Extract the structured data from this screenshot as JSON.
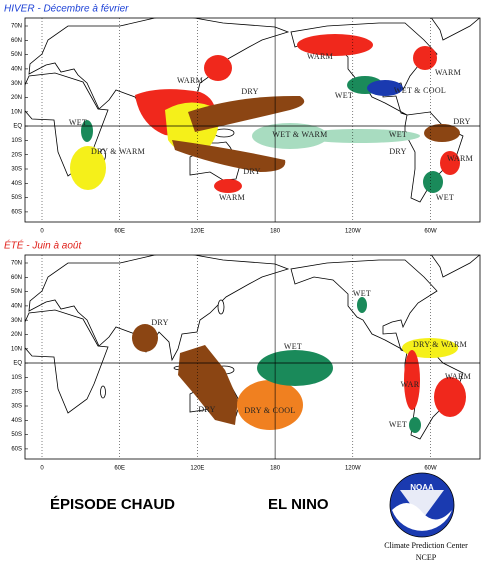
{
  "panels": [
    {
      "title": "HIVER - Décembre à février",
      "title_color": "#1a3fd6",
      "lat_labels": [
        "70N",
        "60N",
        "50N",
        "40N",
        "30N",
        "20N",
        "10N",
        "EQ",
        "10S",
        "20S",
        "30S",
        "40S",
        "50S",
        "60S"
      ],
      "lon_labels": [
        "0",
        "60E",
        "120E",
        "180",
        "120W",
        "60W"
      ],
      "regions": [
        "WARM",
        "DRY",
        "WET",
        "DRY & WARM",
        "DRY",
        "WARM",
        "WET & WARM",
        "WET",
        "DRY",
        "WARM",
        "WET",
        "WET & COOL",
        "WARM",
        "DRY",
        "WARM",
        "WET"
      ]
    },
    {
      "title": "ÉTÉ - Juin à août",
      "title_color": "#e0201a",
      "lat_labels": [
        "70N",
        "60N",
        "50N",
        "40N",
        "30N",
        "20N",
        "10N",
        "EQ",
        "10S",
        "20S",
        "30S",
        "40S",
        "50S",
        "60S"
      ],
      "lon_labels": [
        "0",
        "60E",
        "120E",
        "180",
        "120W",
        "60W"
      ],
      "regions": [
        "DRY",
        "DRY",
        "DRY & COOL",
        "WET",
        "WET",
        "DRY & WARM",
        "WAR",
        "WARM",
        "WET"
      ]
    }
  ],
  "footer": {
    "episode": "ÉPISODE CHAUD",
    "name": "EL NINO",
    "logo": "NOAA",
    "center": "Climate Prediction Center",
    "agency": "NCEP"
  }
}
